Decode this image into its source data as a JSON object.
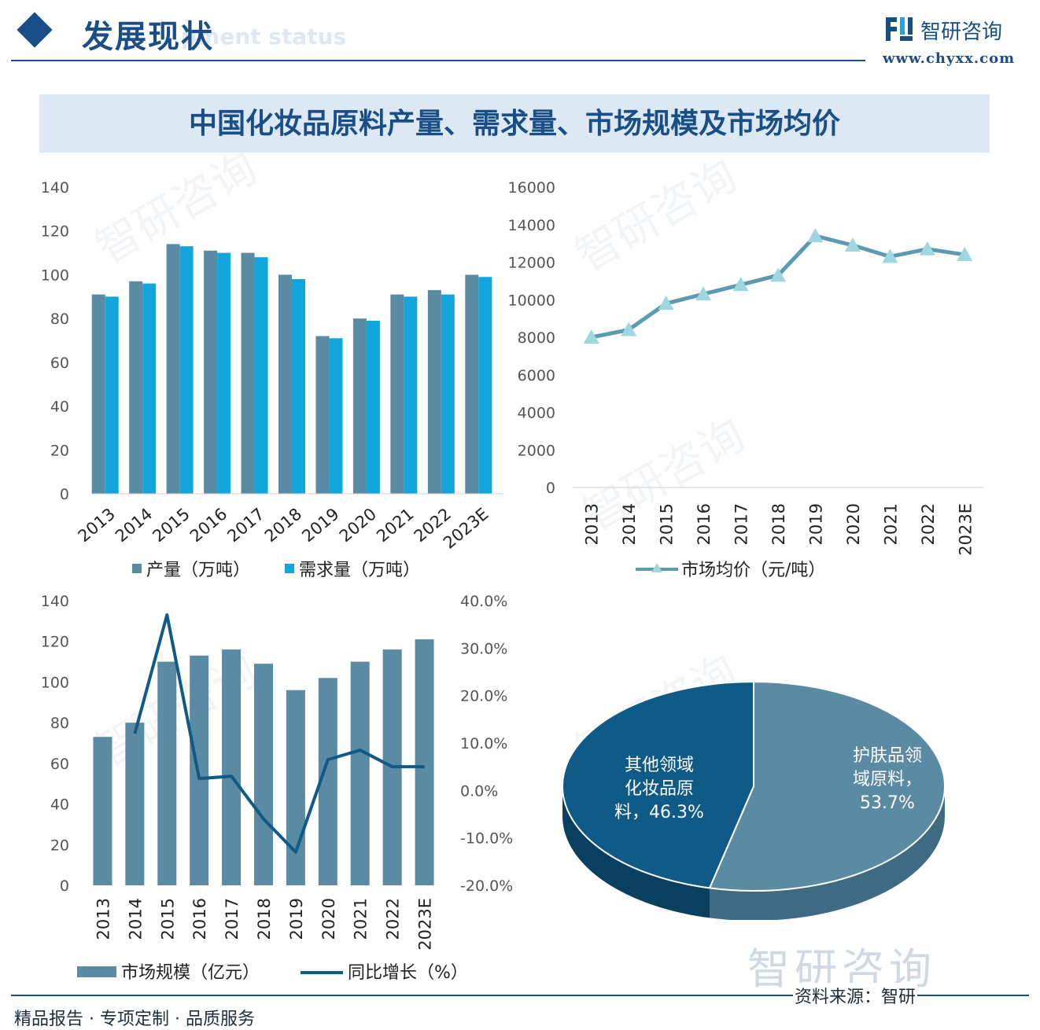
{
  "header": {
    "title": "发展现状",
    "subtitle": "pment status",
    "logo_text": "智研咨询",
    "logo_url": "www.chyxx.com"
  },
  "banner_title": "中国化妆品原料产量、需求量、市场规模及市场均价",
  "footer": {
    "left": "精品报告 · 专项定制 · 品质服务",
    "source": "资料来源：智研",
    "watermark_logo": "智研咨询"
  },
  "colors": {
    "brand": "#1a4e86",
    "production": "#5b8aa3",
    "demand": "#13a6dc",
    "price_line": "#5c9ab2",
    "market_bar": "#5b8aa3",
    "growth_line": "#0f5a86",
    "pie_skin": "#5b8aa3",
    "pie_other": "#0f5a86"
  },
  "chart_data": [
    {
      "type": "bar",
      "categories": [
        "2013",
        "2014",
        "2015",
        "2016",
        "2017",
        "2018",
        "2019",
        "2020",
        "2021",
        "2022",
        "2023E"
      ],
      "series": [
        {
          "name": "产量（万吨）",
          "values": [
            91,
            97,
            114,
            111,
            110,
            100,
            72,
            80,
            91,
            93,
            100
          ]
        },
        {
          "name": "需求量（万吨）",
          "values": [
            90,
            96,
            113,
            110,
            108,
            98,
            71,
            79,
            90,
            91,
            99
          ]
        }
      ],
      "ylim": [
        0,
        140
      ],
      "yticks": [
        "0",
        "20",
        "40",
        "60",
        "80",
        "100",
        "120",
        "140"
      ],
      "legend": "bottom"
    },
    {
      "type": "line",
      "categories": [
        "2013",
        "2014",
        "2015",
        "2016",
        "2017",
        "2018",
        "2019",
        "2020",
        "2021",
        "2022",
        "2023E"
      ],
      "series": [
        {
          "name": "市场均价（元/吨）",
          "values": [
            8000,
            8400,
            9800,
            10300,
            10800,
            11300,
            13400,
            12900,
            12300,
            12700,
            12400
          ]
        }
      ],
      "ylim": [
        0,
        16000
      ],
      "yticks": [
        "0",
        "2000",
        "4000",
        "6000",
        "8000",
        "10000",
        "12000",
        "14000",
        "16000"
      ],
      "marker": "triangle",
      "legend": "bottom"
    },
    {
      "type": "bar",
      "categories": [
        "2013",
        "2014",
        "2015",
        "2016",
        "2017",
        "2018",
        "2019",
        "2020",
        "2021",
        "2022",
        "2023E"
      ],
      "series": [
        {
          "name": "市场规模（亿元）",
          "type": "bar",
          "axis": "left",
          "values": [
            73,
            80,
            110,
            113,
            116,
            109,
            96,
            102,
            110,
            116,
            121
          ]
        },
        {
          "name": "同比增长（%）",
          "type": "line",
          "axis": "right",
          "values": [
            null,
            12,
            37,
            2.5,
            3,
            -6,
            -13,
            6.5,
            8.5,
            5,
            5
          ]
        }
      ],
      "ylim": [
        0,
        140
      ],
      "yticks": [
        "0",
        "20",
        "40",
        "60",
        "80",
        "100",
        "120",
        "140"
      ],
      "y2lim": [
        -20,
        40
      ],
      "y2ticks": [
        "-20.0%",
        "-10.0%",
        "0.0%",
        "10.0%",
        "20.0%",
        "30.0%",
        "40.0%"
      ],
      "legend": "bottom"
    },
    {
      "type": "pie",
      "slices": [
        {
          "label": "护肤品领域原料，53.7%",
          "lines": [
            "护肤品领",
            "域原料，",
            "53.7%"
          ],
          "value": 53.7
        },
        {
          "label": "其他领域化妆品原料，46.3%",
          "lines": [
            "其他领域",
            "化妆品原",
            "料，46.3%"
          ],
          "value": 46.3
        }
      ],
      "style": "3d"
    }
  ]
}
